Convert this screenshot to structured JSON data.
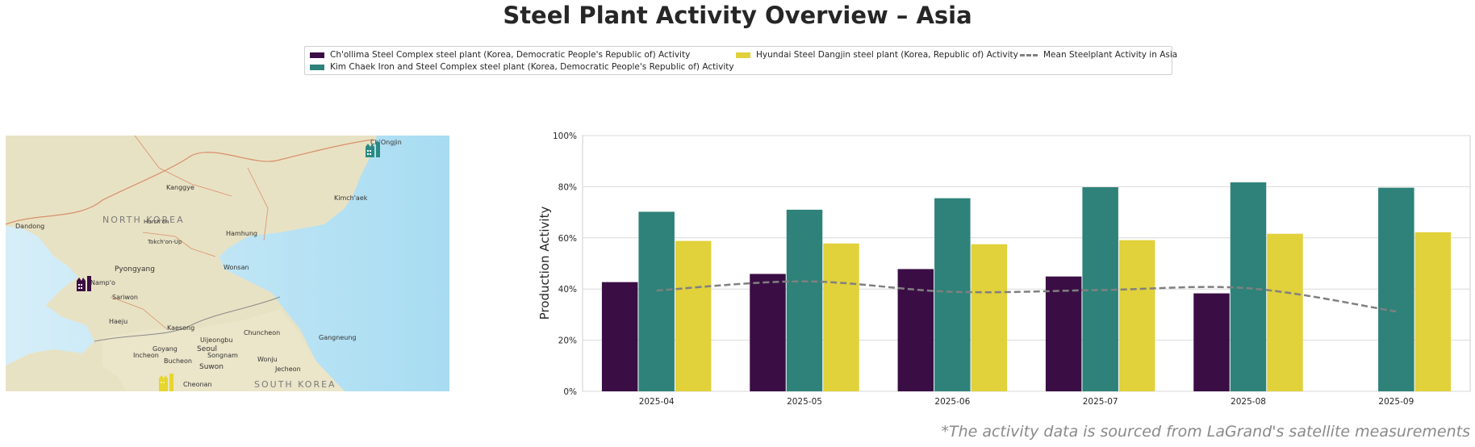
{
  "title": "Steel Plant Activity Overview – Asia",
  "footnote": "*The activity data is sourced from LaGrand's satellite measurements",
  "map": {
    "country_labels": [
      "NORTH KOREA",
      "SOUTH KOREA"
    ],
    "cities": [
      "Ch'Ongjin",
      "Kanggye",
      "Kimch'aek",
      "Dandong",
      "Hurch'on",
      "Hamhung",
      "Tokch'on-Up",
      "Pyongyang",
      "Wonsan",
      "Namp'o",
      "Sariwon",
      "Haeju",
      "Kaesong",
      "Chuncheon",
      "Gangneung",
      "Uijeongbu",
      "Goyang",
      "Seoul",
      "Incheon",
      "Songnam",
      "Bucheon",
      "Wonju",
      "Suwon",
      "Jecheon",
      "Cheonan"
    ],
    "markers": [
      {
        "plant": "Kim Chaek Iron and Steel Complex",
        "near": "Ch'Ongjin",
        "color": "#2a7f7a",
        "icon": "factory-icon"
      },
      {
        "plant": "Ch'ollima Steel Complex",
        "near": "Namp'o",
        "color": "#3b0d45",
        "icon": "factory-icon"
      },
      {
        "plant": "Hyundai Steel Dangjin",
        "near": "Cheonan",
        "color": "#e1d13b",
        "icon": "factory-icon"
      }
    ]
  },
  "legend": [
    {
      "label": "Ch'ollima Steel Complex steel plant (Korea, Democratic People's Republic of) Activity",
      "color": "#3b0d45",
      "type": "bar"
    },
    {
      "label": "Kim Chaek Iron and Steel Complex steel plant (Korea, Democratic People's Republic of) Activity",
      "color": "#2e8279",
      "type": "bar"
    },
    {
      "label": "Hyundai Steel Dangjin steel plant (Korea, Republic of) Activity",
      "color": "#e1d13b",
      "type": "bar"
    },
    {
      "label": "Mean Steelplant Activity in Asia",
      "color": "#808080",
      "type": "dashed-line"
    }
  ],
  "chart_data": {
    "type": "bar",
    "title": "Steel Plant Activity Overview – Asia",
    "xlabel": "",
    "ylabel": "Production Activity",
    "ylim": [
      0,
      100
    ],
    "yticks": [
      "0%",
      "20%",
      "40%",
      "60%",
      "80%",
      "100%"
    ],
    "grid": true,
    "legend_position": "top-center",
    "categories": [
      "2025-04",
      "2025-05",
      "2025-06",
      "2025-07",
      "2025-08",
      "2025-09"
    ],
    "series": [
      {
        "name": "Ch'ollima Steel Complex steel plant (Korea, Democratic People's Republic of) Activity",
        "color": "#3b0d45",
        "values": [
          42.7,
          45.9,
          47.8,
          44.9,
          38.3,
          null
        ]
      },
      {
        "name": "Kim Chaek Iron and Steel Complex steel plant (Korea, Democratic People's Republic of) Activity",
        "color": "#2e8279",
        "values": [
          70.2,
          71.0,
          75.5,
          79.8,
          81.7,
          79.6
        ]
      },
      {
        "name": "Hyundai Steel Dangjin steel plant (Korea, Republic of) Activity",
        "color": "#e1d13b",
        "values": [
          58.8,
          57.8,
          57.5,
          59.1,
          61.6,
          62.2
        ]
      }
    ],
    "mean_line": {
      "name": "Mean Steelplant Activity in Asia",
      "color": "#808080",
      "style": "dashed",
      "values": [
        39.4,
        43.0,
        38.9,
        39.6,
        40.3,
        31.2
      ]
    }
  }
}
